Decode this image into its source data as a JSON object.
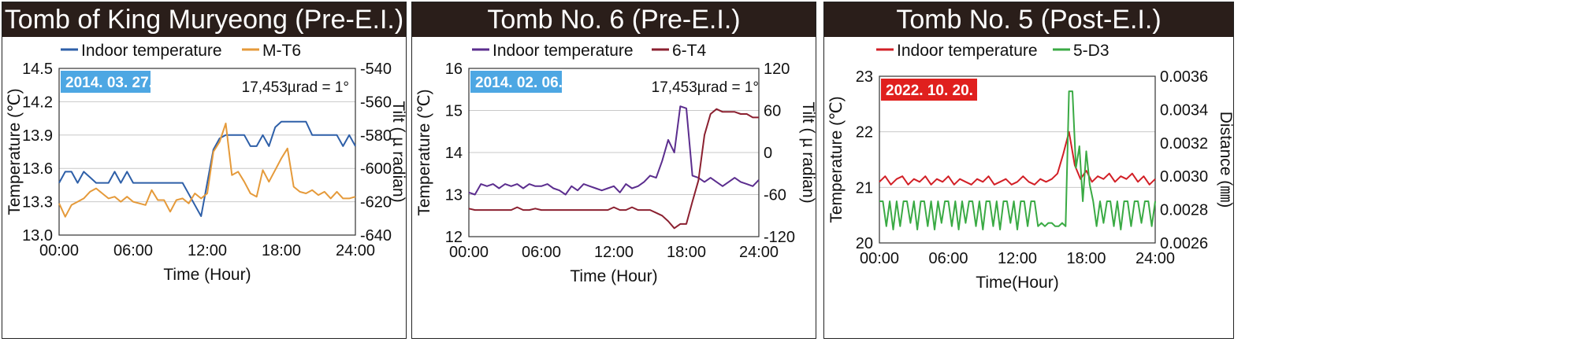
{
  "chart_data": [
    {
      "type": "line",
      "title": "Tomb of King Muryeong (Pre-E.I.)",
      "date_label": "2014. 03. 27.",
      "date_color": "#4da7e3",
      "annotation": "17,453µrad = 1°",
      "xlabel": "Time (Hour)",
      "ylabel": "Temperature (℃)",
      "y2label": "Tilt ( µ radian)",
      "xlim": [
        0,
        24
      ],
      "ylim": [
        13.0,
        14.5
      ],
      "y2lim": [
        -640,
        -540
      ],
      "x_ticks": [
        "00:00",
        "06:00",
        "12:00",
        "18:00",
        "24:00"
      ],
      "y_ticks": [
        "13.0",
        "13.3",
        "13.6",
        "13.9",
        "14.2",
        "14.5"
      ],
      "y2_ticks": [
        "-640",
        "-620",
        "-600",
        "-580",
        "-560",
        "-540"
      ],
      "grid": true,
      "legend": "top",
      "series": [
        {
          "name": "Indoor temperature",
          "axis": "left",
          "color": "#2e5fa8",
          "x": [
            0,
            0.5,
            1,
            1.5,
            2,
            2.5,
            3,
            3.5,
            4,
            4.5,
            5,
            5.5,
            6,
            6.5,
            7,
            7.5,
            8,
            8.5,
            9,
            9.5,
            10,
            10.5,
            11,
            11.5,
            12,
            12.5,
            13,
            13.5,
            14,
            14.5,
            15,
            15.5,
            16,
            16.5,
            17,
            17.5,
            18,
            18.5,
            19,
            19.5,
            20,
            20.5,
            21,
            21.5,
            22,
            22.5,
            23,
            23.5,
            24
          ],
          "y": [
            13.47,
            13.57,
            13.57,
            13.47,
            13.57,
            13.52,
            13.47,
            13.47,
            13.47,
            13.57,
            13.47,
            13.57,
            13.47,
            13.47,
            13.47,
            13.47,
            13.47,
            13.47,
            13.47,
            13.47,
            13.47,
            13.37,
            13.27,
            13.17,
            13.47,
            13.77,
            13.87,
            13.9,
            13.9,
            13.9,
            13.9,
            13.8,
            13.8,
            13.9,
            13.8,
            13.97,
            14.02,
            14.02,
            14.02,
            14.02,
            14.02,
            13.9,
            13.9,
            13.9,
            13.9,
            13.9,
            13.8,
            13.9,
            13.8
          ]
        },
        {
          "name": "M-T6",
          "axis": "right",
          "color": "#e59a3a",
          "x": [
            0,
            0.5,
            1,
            1.5,
            2,
            2.5,
            3,
            3.5,
            4,
            4.5,
            5,
            5.5,
            6,
            6.5,
            7,
            7.5,
            8,
            8.5,
            9,
            9.5,
            10,
            10.5,
            11,
            11.5,
            12,
            12.5,
            13,
            13.5,
            14,
            14.5,
            15,
            15.5,
            16,
            16.5,
            17,
            17.5,
            18,
            18.5,
            19,
            19.5,
            20,
            20.5,
            21,
            21.5,
            22,
            22.5,
            23,
            23.5,
            24
          ],
          "y": [
            -621,
            -629,
            -622,
            -620,
            -618,
            -614,
            -612,
            -615,
            -618,
            -617,
            -620,
            -617,
            -620,
            -621,
            -622,
            -613,
            -619,
            -619,
            -626,
            -619,
            -618,
            -621,
            -615,
            -618,
            -615,
            -590,
            -584,
            -573,
            -604,
            -602,
            -608,
            -615,
            -617,
            -601,
            -608,
            -601,
            -594,
            -588,
            -611,
            -614,
            -615,
            -613,
            -616,
            -614,
            -618,
            -614,
            -618,
            -618,
            -617
          ]
        }
      ]
    },
    {
      "type": "line",
      "title": "Tomb No. 6 (Pre-E.I.)",
      "date_label": "2014. 02. 06.",
      "date_color": "#4da7e3",
      "annotation": "17,453µrad = 1°",
      "xlabel": "Time (Hour)",
      "ylabel": "Temperature (℃)",
      "y2label": "Tilt ( µ radian)",
      "xlim": [
        0,
        24
      ],
      "ylim": [
        12,
        16
      ],
      "y2lim": [
        -120,
        120
      ],
      "x_ticks": [
        "00:00",
        "06:00",
        "12:00",
        "18:00",
        "24:00"
      ],
      "y_ticks": [
        "12",
        "13",
        "14",
        "15",
        "16"
      ],
      "y2_ticks": [
        "-120",
        "-60",
        "0",
        "60",
        "120"
      ],
      "grid": true,
      "legend": "top",
      "series": [
        {
          "name": "Indoor temperature",
          "axis": "left",
          "color": "#5b2d8e",
          "x": [
            0,
            0.5,
            1,
            1.5,
            2,
            2.5,
            3,
            3.5,
            4,
            4.5,
            5,
            5.5,
            6,
            6.5,
            7,
            7.5,
            8,
            8.5,
            9,
            9.5,
            10,
            10.5,
            11,
            11.5,
            12,
            12.5,
            13,
            13.5,
            14,
            14.5,
            15,
            15.5,
            16,
            16.5,
            17,
            17.5,
            18,
            18.5,
            19,
            19.5,
            20,
            20.5,
            21,
            21.5,
            22,
            22.5,
            23,
            23.5,
            24
          ],
          "y": [
            13.05,
            13.0,
            13.25,
            13.2,
            13.25,
            13.15,
            13.25,
            13.2,
            13.25,
            13.15,
            13.25,
            13.2,
            13.2,
            13.25,
            13.15,
            13.1,
            13.0,
            13.2,
            13.1,
            13.25,
            13.2,
            13.15,
            13.1,
            13.15,
            13.2,
            13.05,
            13.25,
            13.15,
            13.2,
            13.3,
            13.45,
            13.4,
            13.8,
            14.3,
            14.0,
            15.1,
            15.05,
            13.45,
            13.4,
            13.3,
            13.4,
            13.3,
            13.2,
            13.3,
            13.4,
            13.3,
            13.25,
            13.2,
            13.35
          ]
        },
        {
          "name": "6-T4",
          "axis": "right",
          "color": "#8b2030",
          "x": [
            0,
            0.5,
            1,
            1.5,
            2,
            2.5,
            3,
            3.5,
            4,
            4.5,
            5,
            5.5,
            6,
            6.5,
            7,
            7.5,
            8,
            8.5,
            9,
            9.5,
            10,
            10.5,
            11,
            11.5,
            12,
            12.5,
            13,
            13.5,
            14,
            14.5,
            15,
            15.5,
            16,
            16.5,
            17,
            17.5,
            18,
            18.5,
            19,
            19.5,
            20,
            20.5,
            21,
            21.5,
            22,
            22.5,
            23,
            23.5,
            24
          ],
          "y": [
            -80,
            -82,
            -82,
            -82,
            -82,
            -82,
            -82,
            -82,
            -78,
            -82,
            -82,
            -80,
            -82,
            -82,
            -82,
            -82,
            -82,
            -82,
            -82,
            -82,
            -82,
            -82,
            -82,
            -82,
            -78,
            -82,
            -82,
            -78,
            -82,
            -82,
            -82,
            -86,
            -90,
            -98,
            -108,
            -102,
            -102,
            -70,
            -40,
            25,
            55,
            62,
            58,
            58,
            58,
            55,
            55,
            50,
            50
          ]
        }
      ]
    },
    {
      "type": "line",
      "title": "Tomb No. 5 (Post-E.I.)",
      "date_label": "2022. 10. 20.",
      "date_color": "#e0201e",
      "annotation": "",
      "xlabel": "Time(Hour)",
      "ylabel": "Temperature (℃)",
      "y2label": "Distance (㎜)",
      "xlim": [
        0,
        24
      ],
      "ylim": [
        20,
        23
      ],
      "y2lim": [
        0.0026,
        0.0036
      ],
      "x_ticks": [
        "00:00",
        "06:00",
        "12:00",
        "18:00",
        "24:00"
      ],
      "y_ticks": [
        "20",
        "21",
        "22",
        "23"
      ],
      "y2_ticks": [
        "0.0026",
        "0.0028",
        "0.0030",
        "0.0032",
        "0.0034",
        "0.0036"
      ],
      "grid": true,
      "legend": "top",
      "series": [
        {
          "name": "Indoor temperature",
          "axis": "left",
          "color": "#d21f26",
          "x": [
            0,
            0.5,
            1,
            1.5,
            2,
            2.5,
            3,
            3.5,
            4,
            4.5,
            5,
            5.5,
            6,
            6.5,
            7,
            7.5,
            8,
            8.5,
            9,
            9.5,
            10,
            10.5,
            11,
            11.5,
            12,
            12.5,
            13,
            13.5,
            14,
            14.5,
            15,
            15.5,
            16,
            16.5,
            17,
            17.5,
            18,
            18.5,
            19,
            19.5,
            20,
            20.5,
            21,
            21.5,
            22,
            22.5,
            23,
            23.5,
            24
          ],
          "y": [
            21.1,
            21.2,
            21.05,
            21.15,
            21.2,
            21.05,
            21.15,
            21.1,
            21.2,
            21.05,
            21.15,
            21.1,
            21.2,
            21.05,
            21.15,
            21.1,
            21.05,
            21.15,
            21.1,
            21.2,
            21.05,
            21.1,
            21.15,
            21.05,
            21.1,
            21.2,
            21.1,
            21.05,
            21.15,
            21.1,
            21.15,
            21.25,
            21.6,
            22.0,
            21.4,
            21.15,
            21.3,
            21.1,
            21.2,
            21.15,
            21.25,
            21.1,
            21.2,
            21.15,
            21.25,
            21.1,
            21.2,
            21.05,
            21.15
          ]
        },
        {
          "name": "5-D3",
          "axis": "right",
          "color": "#3aaa44",
          "x": [
            0,
            0.3,
            0.6,
            0.9,
            1.2,
            1.5,
            1.8,
            2.1,
            2.4,
            2.7,
            3.0,
            3.3,
            3.6,
            3.9,
            4.2,
            4.5,
            4.8,
            5.1,
            5.4,
            5.7,
            6.0,
            6.3,
            6.6,
            6.9,
            7.2,
            7.5,
            7.8,
            8.1,
            8.4,
            8.7,
            9.0,
            9.3,
            9.6,
            9.9,
            10.2,
            10.5,
            10.8,
            11.1,
            11.4,
            11.7,
            12.0,
            12.3,
            12.6,
            12.9,
            13.2,
            13.5,
            13.8,
            14.1,
            14.4,
            14.7,
            15.0,
            15.3,
            15.6,
            15.9,
            16.2,
            16.5,
            16.8,
            17.1,
            17.4,
            17.7,
            18.0,
            18.3,
            18.6,
            18.9,
            19.2,
            19.5,
            19.8,
            20.1,
            20.4,
            20.7,
            21.0,
            21.3,
            21.6,
            21.9,
            22.2,
            22.5,
            22.8,
            23.1,
            23.4,
            23.7,
            24.0
          ],
          "y": [
            0.00285,
            0.00285,
            0.0027,
            0.00285,
            0.00268,
            0.00285,
            0.0027,
            0.00285,
            0.00285,
            0.00272,
            0.00285,
            0.00268,
            0.00285,
            0.00285,
            0.0027,
            0.00285,
            0.00268,
            0.00285,
            0.00272,
            0.00285,
            0.00285,
            0.0027,
            0.00285,
            0.00268,
            0.00285,
            0.00272,
            0.00285,
            0.00285,
            0.0027,
            0.00285,
            0.00268,
            0.00285,
            0.00285,
            0.0027,
            0.00285,
            0.00268,
            0.00285,
            0.00285,
            0.00272,
            0.00285,
            0.00268,
            0.00285,
            0.00285,
            0.0027,
            0.00285,
            0.00285,
            0.0027,
            0.00272,
            0.0027,
            0.00272,
            0.00272,
            0.0027,
            0.0027,
            0.00272,
            0.0027,
            0.00351,
            0.00351,
            0.00305,
            0.00318,
            0.00285,
            0.00315,
            0.00295,
            0.00285,
            0.0027,
            0.00285,
            0.00272,
            0.00285,
            0.00285,
            0.0027,
            0.00285,
            0.00268,
            0.00285,
            0.00285,
            0.0027,
            0.00285,
            0.00285,
            0.00272,
            0.00285,
            0.00285,
            0.0027,
            0.00285
          ]
        }
      ]
    }
  ]
}
